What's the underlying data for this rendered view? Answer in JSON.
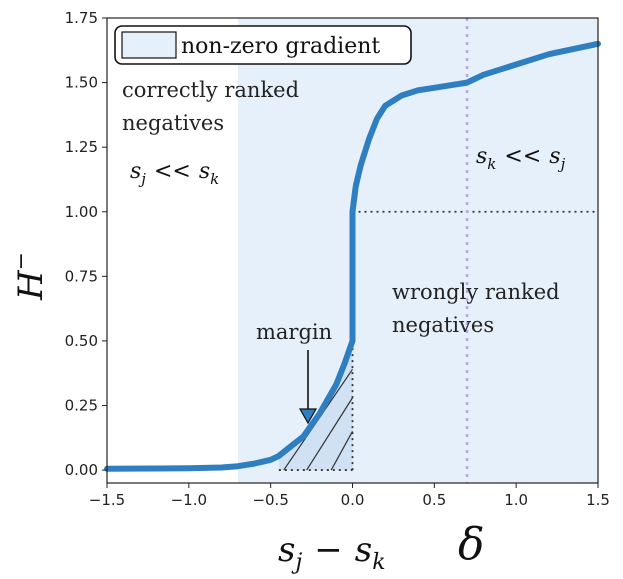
{
  "chart_data": {
    "type": "line",
    "xlabel_parts": {
      "s1": "s",
      "sub1": "j",
      "op": "−",
      "s2": "s",
      "sub2": "k"
    },
    "ylabel_parts": {
      "main": "H",
      "sup": "−"
    },
    "x_ticks": [
      "−1.5",
      "−1.0",
      "−0.5",
      "0.0",
      "0.5",
      "1.0",
      "1.5"
    ],
    "x_tick_values": [
      -1.5,
      -1.0,
      -0.5,
      0.0,
      0.5,
      1.0,
      1.5
    ],
    "y_ticks": [
      "0.00",
      "0.25",
      "0.50",
      "0.75",
      "1.00",
      "1.25",
      "1.50",
      "1.75"
    ],
    "y_tick_values": [
      0.0,
      0.25,
      0.5,
      0.75,
      1.0,
      1.25,
      1.5,
      1.75
    ],
    "xlim": [
      -1.5,
      1.5
    ],
    "ylim": [
      -0.05,
      1.75
    ],
    "delta_label": "δ",
    "delta_x": 0.7,
    "shaded_region_start_x": -0.7,
    "series": [
      {
        "color": "#2e7ec0",
        "x": [
          -1.5,
          -1.2,
          -1.0,
          -0.8,
          -0.7,
          -0.6,
          -0.5,
          -0.45,
          -0.4,
          -0.3,
          -0.2,
          -0.1,
          -0.05,
          0.0,
          0.0,
          0.02,
          0.05,
          0.1,
          0.15,
          0.2,
          0.3,
          0.4,
          0.5,
          0.6,
          0.7,
          0.8,
          1.0,
          1.2,
          1.5
        ],
        "y": [
          0.005,
          0.006,
          0.007,
          0.01,
          0.015,
          0.025,
          0.04,
          0.055,
          0.08,
          0.13,
          0.22,
          0.33,
          0.41,
          0.5,
          1.0,
          1.1,
          1.18,
          1.28,
          1.36,
          1.41,
          1.45,
          1.47,
          1.48,
          1.49,
          1.5,
          1.53,
          1.57,
          1.61,
          1.65
        ]
      }
    ],
    "legend": {
      "label": "non-zero gradient",
      "placement": "top-left"
    },
    "annotations": {
      "correct_line1": "correctly ranked",
      "correct_line2": "negatives",
      "wrong_line1": "wrongly ranked",
      "wrong_line2": "negatives",
      "margin": "margin",
      "left_math": {
        "a": "s",
        "a_sub": "j",
        "rel": "<<",
        "b": "s",
        "b_sub": "k"
      },
      "right_math": {
        "a": "s",
        "a_sub": "k",
        "rel": "<<",
        "b": "s",
        "b_sub": "j"
      }
    },
    "grid": false,
    "colors": {
      "line": "#2e7ec0",
      "shade": "#e6f0fa",
      "delta_line": "#b9a6e6",
      "dotted": "#333333"
    }
  }
}
